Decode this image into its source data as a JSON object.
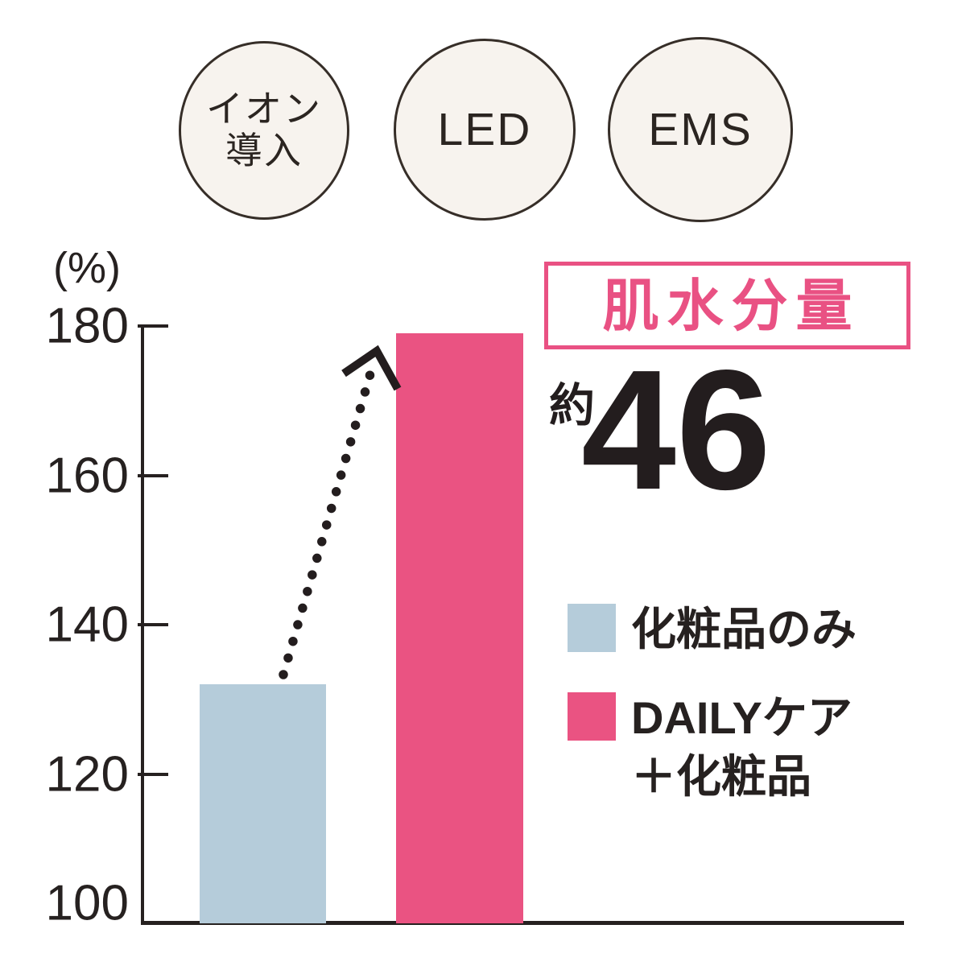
{
  "palette": {
    "pink": "#e95183",
    "light_blue": "#b5ccda",
    "ink": "#262120",
    "cream": "#f7f3ee",
    "circle_outline": "#362e28"
  },
  "badges": [
    {
      "label": "イオン\n導入"
    },
    {
      "label": "LED"
    },
    {
      "label": "EMS"
    }
  ],
  "chart_data": {
    "type": "bar",
    "title": "肌水分量",
    "unit_label": "(%)",
    "categories": [
      "化粧品のみ",
      "DAILYケア＋化粧品"
    ],
    "values": [
      132,
      179
    ],
    "ylim": [
      100,
      180
    ],
    "yticks": [
      180,
      160,
      140,
      120,
      100
    ],
    "grid": false,
    "legend_position": "right",
    "annotation": {
      "prefix": "約",
      "value": "46"
    },
    "legend": [
      {
        "lines": [
          "化粧品のみ",
          ""
        ],
        "color": "#b5ccda"
      },
      {
        "lines": [
          "DAILYケア",
          "＋化粧品"
        ],
        "color": "#ea5382"
      }
    ]
  }
}
